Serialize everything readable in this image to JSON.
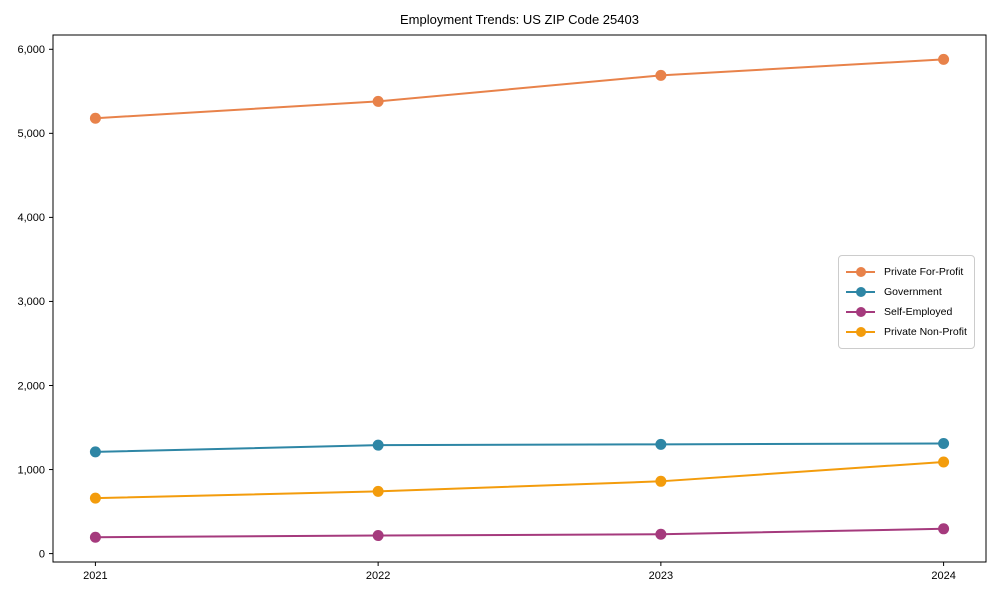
{
  "chart_data": {
    "type": "line",
    "title": "Employment Trends: US ZIP Code 25403",
    "xlabel": "",
    "ylabel": "",
    "x": [
      2021,
      2022,
      2023,
      2024
    ],
    "x_tick_labels": [
      "2021",
      "2022",
      "2023",
      "2024"
    ],
    "series": [
      {
        "name": "Private For-Profit",
        "color": "#e8824a",
        "values": [
          5180,
          5380,
          5690,
          5880
        ]
      },
      {
        "name": "Government",
        "color": "#2e86a5",
        "values": [
          1210,
          1290,
          1300,
          1310
        ]
      },
      {
        "name": "Self-Employed",
        "color": "#a53a7d",
        "values": [
          195,
          215,
          230,
          295
        ]
      },
      {
        "name": "Private Non-Profit",
        "color": "#f39c0c",
        "values": [
          660,
          740,
          860,
          1090
        ]
      }
    ],
    "yticks": [
      0,
      1000,
      2000,
      3000,
      4000,
      5000,
      6000
    ],
    "ytick_labels": [
      "0",
      "1,000",
      "2,000",
      "3,000",
      "4,000",
      "5,000",
      "6,000"
    ],
    "ylim": [
      -100,
      6170
    ],
    "xlim": [
      2020.85,
      2024.15
    ],
    "grid": false,
    "legend_position": "center-right",
    "marker": "circle",
    "background": "#ffffff",
    "axis_color": "#000000"
  }
}
